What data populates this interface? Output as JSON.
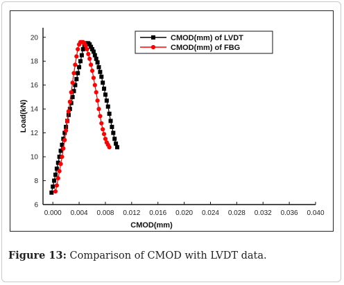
{
  "caption": {
    "figure_label": "Figure 13:",
    "text": " Comparison of CMOD with LVDT data."
  },
  "chart_data": {
    "type": "scatter",
    "title": "",
    "xlabel": "CMOD(mm)",
    "ylabel": "Load(kN)",
    "xlim": [
      -0.0015,
      0.04
    ],
    "ylim": [
      6,
      20.8
    ],
    "x_ticks": [
      0.0,
      0.004,
      0.008,
      0.012,
      0.016,
      0.02,
      0.024,
      0.028,
      0.032,
      0.036,
      0.04
    ],
    "x_tick_labels": [
      "0.000",
      "0.004",
      "0.008",
      "0.012",
      "0.016",
      "0.020",
      "0.024",
      "0.028",
      "0.032",
      "0.036",
      "0.040"
    ],
    "y_ticks": [
      6,
      8,
      10,
      12,
      14,
      16,
      18,
      20
    ],
    "y_tick_labels": [
      "6",
      "8",
      "10",
      "12",
      "14",
      "16",
      "18",
      "20"
    ],
    "grid": false,
    "legend_position": "top-right",
    "series": [
      {
        "name": "CMOD(mm) of LVDT",
        "color": "#000000",
        "marker": "square",
        "x": [
          -0.0002,
          0.0,
          0.0002,
          0.0004,
          0.0006,
          0.0008,
          0.001,
          0.0012,
          0.0014,
          0.0016,
          0.0018,
          0.002,
          0.0022,
          0.0024,
          0.0026,
          0.0028,
          0.003,
          0.0032,
          0.0034,
          0.0036,
          0.0038,
          0.004,
          0.0042,
          0.0044,
          0.0046,
          0.0048,
          0.005,
          0.0052,
          0.0054,
          0.0056,
          0.0058,
          0.006,
          0.0062,
          0.0064,
          0.0066,
          0.0068,
          0.007,
          0.0072,
          0.0074,
          0.0076,
          0.0078,
          0.008,
          0.0082,
          0.0084,
          0.0086,
          0.0088,
          0.009,
          0.0092,
          0.0094,
          0.0096,
          0.0098
        ],
        "y": [
          7.0,
          7.5,
          8.0,
          8.5,
          9.0,
          9.5,
          10.0,
          10.5,
          11.0,
          11.5,
          12.0,
          12.5,
          13.0,
          13.5,
          14.0,
          14.5,
          15.0,
          15.5,
          16.0,
          16.5,
          17.0,
          17.5,
          18.0,
          18.5,
          19.0,
          19.3,
          19.5,
          19.5,
          19.5,
          19.4,
          19.2,
          19.0,
          18.8,
          18.5,
          18.2,
          17.9,
          17.5,
          17.1,
          16.7,
          16.2,
          15.7,
          15.2,
          14.7,
          14.2,
          13.6,
          13.0,
          12.5,
          12.0,
          11.5,
          11.1,
          10.8
        ]
      },
      {
        "name": "CMOD(mm) of FBG",
        "color": "#ff0000",
        "marker": "circle",
        "x": [
          0.0004,
          0.0006,
          0.0008,
          0.001,
          0.0012,
          0.0014,
          0.0016,
          0.0018,
          0.002,
          0.0022,
          0.0024,
          0.0026,
          0.0028,
          0.003,
          0.0032,
          0.0034,
          0.0036,
          0.0038,
          0.004,
          0.0042,
          0.0044,
          0.0046,
          0.0048,
          0.005,
          0.0052,
          0.0054,
          0.0056,
          0.0058,
          0.006,
          0.0062,
          0.0064,
          0.0066,
          0.0068,
          0.007,
          0.0072,
          0.0074,
          0.0076,
          0.0078,
          0.008,
          0.0082,
          0.0084,
          0.0086
        ],
        "y": [
          7.1,
          7.6,
          8.2,
          8.8,
          9.4,
          10.0,
          10.7,
          11.4,
          12.2,
          13.0,
          13.8,
          14.6,
          15.4,
          16.2,
          17.0,
          17.7,
          18.4,
          19.0,
          19.4,
          19.6,
          19.6,
          19.6,
          19.5,
          19.3,
          19.0,
          18.6,
          18.2,
          17.7,
          17.2,
          16.6,
          16.0,
          15.4,
          14.7,
          14.0,
          13.4,
          12.8,
          12.3,
          11.9,
          11.5,
          11.2,
          11.0,
          10.8
        ]
      }
    ]
  }
}
